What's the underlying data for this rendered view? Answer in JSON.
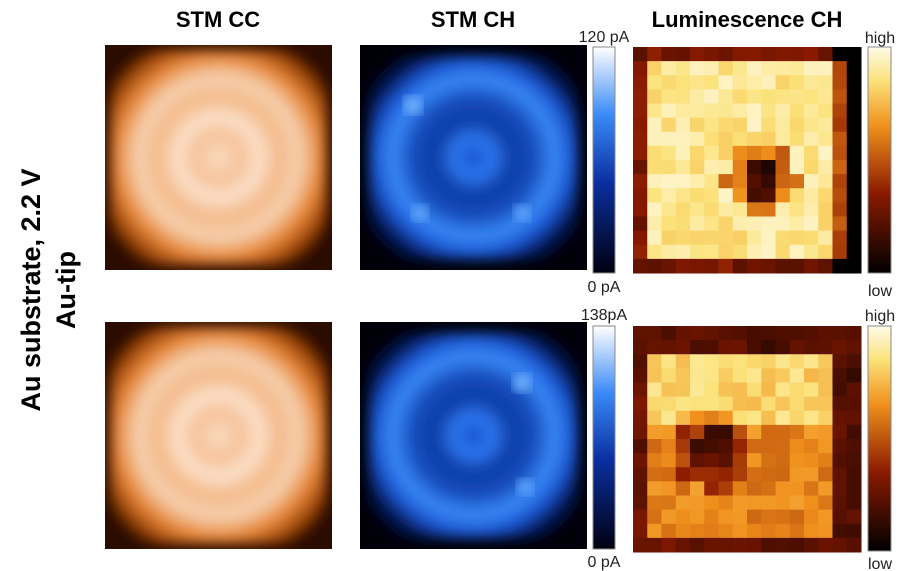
{
  "column_titles": [
    "STM CC",
    "STM CH",
    "Luminescence CH"
  ],
  "row_label": [
    "Au substrate, 2.2 V",
    "Au-tip"
  ],
  "rows": [
    {
      "current_colorbar": {
        "max": "120 pA",
        "min": "0 pA"
      },
      "luminescence_colorbar": {
        "max": "high",
        "min": "low"
      }
    },
    {
      "current_colorbar": {
        "max": "138pA",
        "min": "0 pA"
      },
      "luminescence_colorbar": {
        "max": "high",
        "min": "low"
      }
    }
  ]
}
